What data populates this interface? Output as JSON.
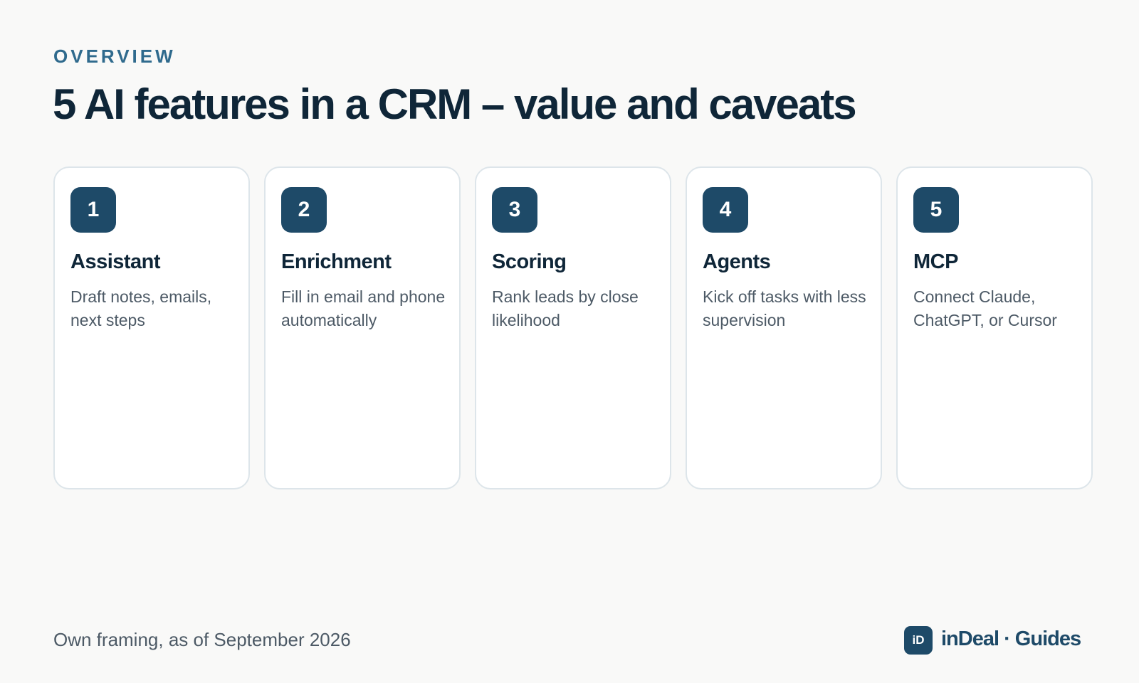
{
  "header": {
    "eyebrow": "OVERVIEW",
    "title": "5 AI features in a CRM – value and caveats"
  },
  "cards": [
    {
      "number": "1",
      "title": "Assistant",
      "description": "Draft notes, emails, next steps"
    },
    {
      "number": "2",
      "title": "Enrichment",
      "description": "Fill in email and phone automatically"
    },
    {
      "number": "3",
      "title": "Scoring",
      "description": "Rank leads by close likelihood"
    },
    {
      "number": "4",
      "title": "Agents",
      "description": "Kick off tasks with less supervision"
    },
    {
      "number": "5",
      "title": "MCP",
      "description": "Connect Claude, ChatGPT, or Cursor"
    }
  ],
  "footer": {
    "note": "Own framing, as of September 2026",
    "logo_mark": "iD",
    "brand": "inDeal · Guides"
  }
}
